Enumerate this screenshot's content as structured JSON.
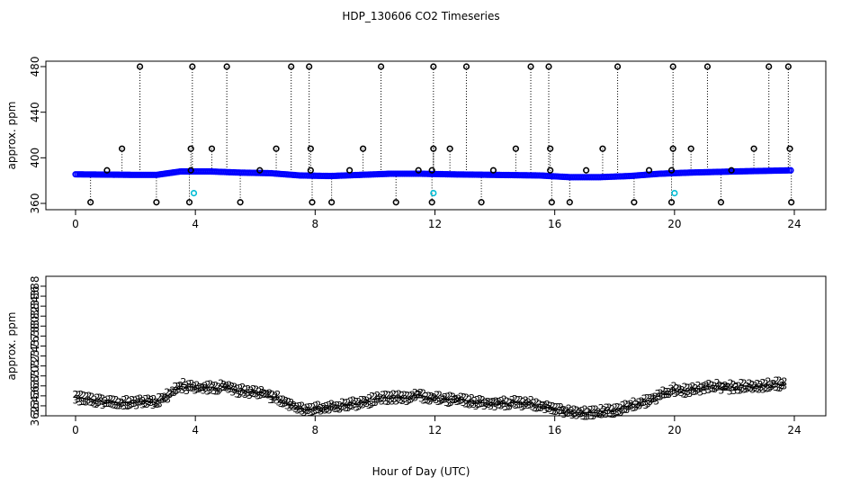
{
  "title": "HDP_130606  CO2 Timeseries",
  "colors": {
    "flagged": "#000000",
    "primary": "#0000ff",
    "secondary": "#00c000",
    "low": "#00bcd4",
    "axis": "#000000"
  },
  "chart_data": [
    {
      "type": "scatter",
      "name": "top-panel",
      "ylabel": "approx. ppm",
      "xlabel": "",
      "xlim": [
        0,
        24
      ],
      "ylim": [
        360,
        482
      ],
      "xticks": [
        0,
        4,
        8,
        12,
        16,
        20,
        24
      ],
      "yticks": [
        360,
        400,
        440,
        480
      ],
      "baseline": [
        [
          0,
          385.5
        ],
        [
          2,
          385
        ],
        [
          2.7,
          385
        ],
        [
          3.5,
          388
        ],
        [
          4.5,
          388
        ],
        [
          5.5,
          387
        ],
        [
          6.5,
          386.5
        ],
        [
          7.5,
          384.5
        ],
        [
          8.5,
          384
        ],
        [
          9.5,
          385
        ],
        [
          10.5,
          386
        ],
        [
          11.5,
          386
        ],
        [
          12.5,
          385.5
        ],
        [
          14,
          385
        ],
        [
          15.5,
          384.5
        ],
        [
          16.5,
          383
        ],
        [
          17.5,
          383
        ],
        [
          18.5,
          384
        ],
        [
          19.5,
          386
        ],
        [
          20.5,
          387
        ],
        [
          22,
          388
        ],
        [
          23.9,
          389
        ]
      ],
      "spikes_high": [
        2.15,
        3.9,
        5.05,
        7.2,
        7.8,
        10.2,
        11.95,
        13.05,
        15.2,
        15.8,
        18.1,
        19.95,
        21.1,
        23.15,
        23.8
      ],
      "spikes_mid": [
        1.55,
        3.85,
        4.55,
        6.7,
        7.85,
        9.6,
        11.95,
        12.5,
        14.7,
        15.85,
        17.6,
        19.95,
        20.55,
        22.65,
        23.85
      ],
      "spikes_low": [
        0.5,
        2.7,
        3.8,
        5.5,
        7.9,
        8.55,
        10.7,
        11.9,
        13.55,
        15.9,
        16.5,
        18.65,
        19.9,
        21.55,
        23.9
      ],
      "spikes_389": [
        1.05,
        3.85,
        6.15,
        7.85,
        9.15,
        11.45,
        11.9,
        13.95,
        15.85,
        17.05,
        19.15,
        19.9,
        21.9
      ],
      "low_points": [
        [
          3.95,
          369
        ],
        [
          11.95,
          369
        ],
        [
          20.0,
          369
        ]
      ]
    },
    {
      "type": "scatter",
      "name": "bottom-panel",
      "ylabel": "approx. ppm",
      "xlabel": "Hour of Day (UTC)",
      "xlim": [
        0,
        24
      ],
      "ylim": [
        362,
        388.5
      ],
      "xticks": [
        0,
        4,
        8,
        12,
        16,
        20,
        24
      ],
      "yticks": [
        362,
        364,
        366,
        368,
        370,
        372,
        374,
        376,
        378,
        380,
        382,
        384,
        386,
        388
      ],
      "primary_symbol": "3",
      "secondary_symbol": "2",
      "curve": [
        [
          0,
          365.4
        ],
        [
          0.5,
          365.2
        ],
        [
          1,
          364.6
        ],
        [
          1.3,
          364.3
        ],
        [
          1.8,
          364.6
        ],
        [
          2.3,
          364.8
        ],
        [
          2.7,
          364.5
        ],
        [
          3.1,
          366
        ],
        [
          3.5,
          367.9
        ],
        [
          3.9,
          367.5
        ],
        [
          4.5,
          367.5
        ],
        [
          5.1,
          367.6
        ],
        [
          5.4,
          366.8
        ],
        [
          6.2,
          366.6
        ],
        [
          6.7,
          365.5
        ],
        [
          7.2,
          364
        ],
        [
          7.6,
          363.1
        ],
        [
          8.0,
          363.2
        ],
        [
          8.5,
          363.6
        ],
        [
          9.0,
          364
        ],
        [
          9.5,
          364.3
        ],
        [
          10.0,
          365.2
        ],
        [
          10.5,
          365.6
        ],
        [
          11.0,
          365.5
        ],
        [
          11.4,
          366.1
        ],
        [
          11.8,
          365.5
        ],
        [
          12.3,
          365.2
        ],
        [
          13.0,
          365
        ],
        [
          13.5,
          364.5
        ],
        [
          14.2,
          364.4
        ],
        [
          15.0,
          364.4
        ],
        [
          15.5,
          364
        ],
        [
          15.8,
          363.6
        ],
        [
          16.2,
          362.9
        ],
        [
          16.7,
          362.5
        ],
        [
          17.4,
          362.5
        ],
        [
          18.0,
          363
        ],
        [
          18.5,
          363.8
        ],
        [
          19.0,
          364.6
        ],
        [
          19.5,
          365.9
        ],
        [
          20.0,
          367.1
        ],
        [
          20.5,
          366.8
        ],
        [
          21.2,
          367.9
        ],
        [
          21.8,
          367.5
        ],
        [
          22.5,
          367.8
        ],
        [
          23.2,
          368
        ],
        [
          23.7,
          368.3
        ]
      ]
    }
  ]
}
